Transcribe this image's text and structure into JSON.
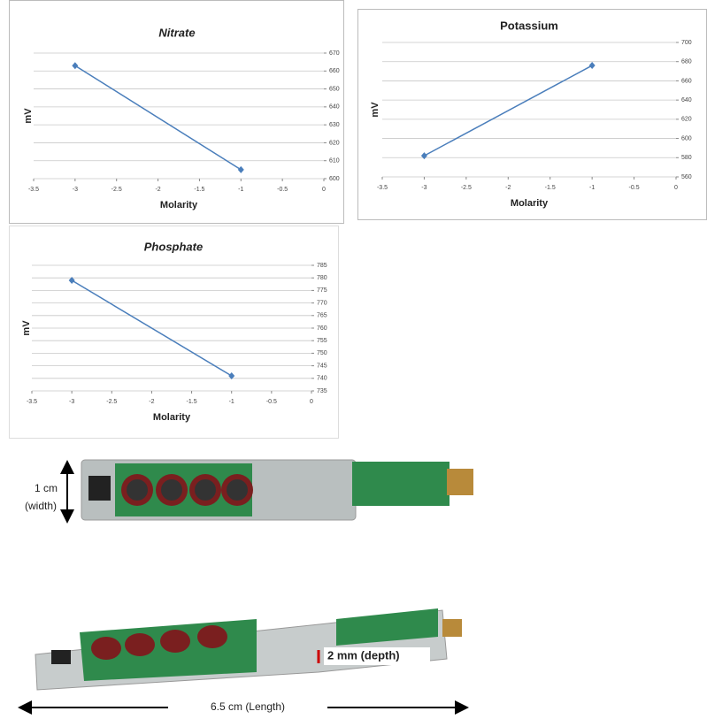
{
  "chart_data": [
    {
      "type": "line",
      "title": "Nitrate",
      "title_italic": true,
      "xlabel": "Molarity",
      "ylabel": "mV",
      "x": [
        -3,
        -1
      ],
      "values": [
        663,
        605
      ],
      "color": "#4a7ebb",
      "xlim": [
        -3.5,
        0
      ],
      "xticks": [
        -3.5,
        -3,
        -2.5,
        -2,
        -1.5,
        -1,
        -0.5,
        0
      ],
      "ylim": [
        600,
        670
      ],
      "yticks": [
        600,
        610,
        620,
        630,
        640,
        650,
        660,
        670
      ],
      "grid": true
    },
    {
      "type": "line",
      "title": "Potassium",
      "title_italic": false,
      "xlabel": "Molarity",
      "ylabel": "mV",
      "x": [
        -3,
        -1
      ],
      "values": [
        582,
        676
      ],
      "color": "#4a7ebb",
      "xlim": [
        -3.5,
        0
      ],
      "xticks": [
        -3.5,
        -3,
        -2.5,
        -2,
        -1.5,
        -1,
        -0.5,
        0
      ],
      "ylim": [
        560,
        700
      ],
      "yticks": [
        560,
        580,
        600,
        620,
        640,
        660,
        680,
        700
      ],
      "grid": true
    },
    {
      "type": "line",
      "title": "Phosphate",
      "title_italic": true,
      "xlabel": "Molarity",
      "ylabel": "mV",
      "x": [
        -3,
        -1
      ],
      "values": [
        779,
        741
      ],
      "color": "#4a7ebb",
      "xlim": [
        -3.5,
        0
      ],
      "xticks": [
        -3.5,
        -3,
        -2.5,
        -2,
        -1.5,
        -1,
        -0.5,
        0
      ],
      "ylim": [
        735,
        785
      ],
      "yticks": [
        735,
        740,
        745,
        750,
        755,
        760,
        765,
        770,
        775,
        780,
        785
      ],
      "grid": true
    }
  ],
  "photo": {
    "width_label": [
      "1 cm",
      "(width)"
    ],
    "depth_label": "2 mm (depth)",
    "length_label": "6.5 cm (Length)"
  }
}
